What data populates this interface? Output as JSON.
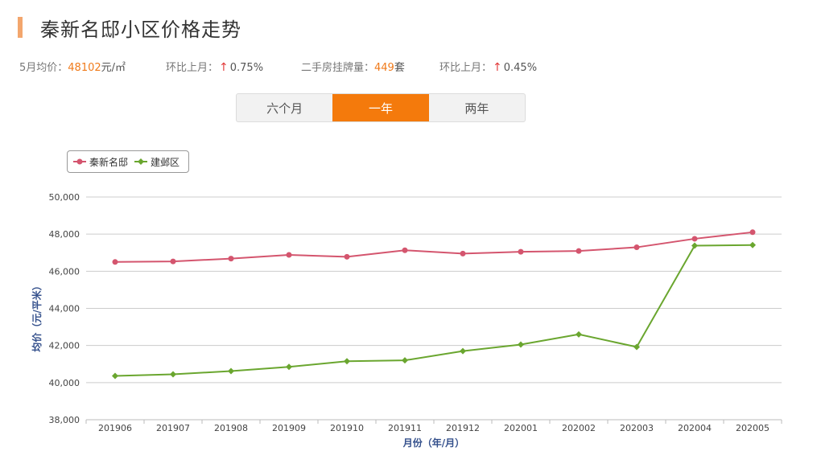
{
  "header": {
    "title": "秦新名邸小区价格走势"
  },
  "stats": {
    "avg_label": "5月均价：",
    "avg_value": "48102",
    "avg_unit": "元/㎡",
    "mom1_label": "环比上月：",
    "mom1_arrow": "↑",
    "mom1_value": "0.75%",
    "listings_label": "二手房挂牌量：",
    "listings_value": "449",
    "listings_unit": "套",
    "mom2_label": "环比上月：",
    "mom2_arrow": "↑",
    "mom2_value": "0.45%"
  },
  "tabs": [
    {
      "label": "六个月",
      "active": false
    },
    {
      "label": "一年",
      "active": true
    },
    {
      "label": "两年",
      "active": false
    }
  ],
  "colors": {
    "accent": "#f47a0c",
    "series_1": "#d4556e",
    "series_2": "#6aa62f",
    "up_arrow": "#e23a3a"
  },
  "chart_data": {
    "type": "line",
    "title": "",
    "xlabel": "月份（年/月）",
    "ylabel": "均价（元/平米）",
    "ylim": [
      38000,
      50000
    ],
    "yticks": [
      38000,
      40000,
      42000,
      44000,
      46000,
      48000,
      50000
    ],
    "ytick_labels": [
      "38,000",
      "40,000",
      "42,000",
      "44,000",
      "46,000",
      "48,000",
      "50,000"
    ],
    "grid": true,
    "legend_position": "top-left",
    "categories": [
      "201906",
      "201907",
      "201908",
      "201909",
      "201910",
      "201911",
      "201912",
      "202001",
      "202002",
      "202003",
      "202004",
      "202005"
    ],
    "series": [
      {
        "name": "秦新名邸",
        "marker": "circle",
        "values": [
          46500,
          46530,
          46680,
          46880,
          46780,
          47130,
          46950,
          47050,
          47090,
          47290,
          47750,
          48102
        ]
      },
      {
        "name": "建邺区",
        "marker": "diamond",
        "values": [
          40360,
          40450,
          40620,
          40850,
          41150,
          41200,
          41700,
          42050,
          42600,
          41920,
          47380,
          47410
        ]
      }
    ]
  }
}
